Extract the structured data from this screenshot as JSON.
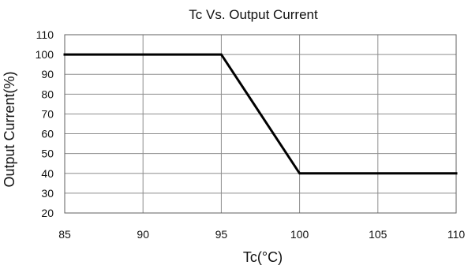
{
  "chart_data": {
    "type": "line",
    "title": "Tc Vs. Output Current",
    "xlabel": "Tc(°C)",
    "ylabel": "Output Current(%)",
    "xlim": [
      85,
      110
    ],
    "ylim": [
      20,
      110
    ],
    "x_ticks": [
      85,
      90,
      95,
      100,
      105,
      110
    ],
    "y_ticks": [
      20,
      30,
      40,
      50,
      60,
      70,
      80,
      90,
      100,
      110
    ],
    "grid": true,
    "legend": false,
    "series": [
      {
        "x": [
          85,
          95,
          100,
          110
        ],
        "y": [
          100,
          100,
          40,
          40
        ],
        "color": "#000000"
      }
    ]
  }
}
